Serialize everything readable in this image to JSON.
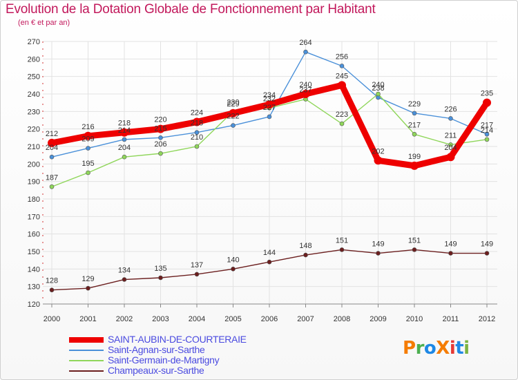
{
  "title": "Evolution de la Dotation Globale de Fonctionnement par Habitant",
  "subtitle": "(en € et par an)",
  "logo": {
    "text": "ProXiti",
    "letters": [
      "P",
      "r",
      "o",
      "X",
      "i",
      "t",
      "i"
    ],
    "colors": [
      "#f57c00",
      "#4caf50",
      "#1e88e5",
      "#f57c00",
      "#e53935",
      "#1e88e5",
      "#7cb342"
    ]
  },
  "chart_data": {
    "type": "line",
    "title": "Evolution de la Dotation Globale de Fonctionnement par Habitant",
    "subtitle": "(en € et par an)",
    "x": [
      "2000",
      "2001",
      "2002",
      "2003",
      "2004",
      "2005",
      "2006",
      "2007",
      "2008",
      "2009",
      "2010",
      "2011",
      "2012"
    ],
    "ylim": [
      120,
      270
    ],
    "yticks": [
      120,
      130,
      140,
      150,
      160,
      170,
      180,
      190,
      200,
      210,
      220,
      230,
      240,
      250,
      260,
      270
    ],
    "grid": true,
    "legend_position": "bottom-left",
    "series": [
      {
        "name": "SAINT-AUBIN-DE-COURTERAIE",
        "color": "#ee0000",
        "values": [
          212,
          216,
          218,
          220,
          224,
          229,
          234,
          240,
          245,
          202,
          199,
          204,
          235
        ]
      },
      {
        "name": "Saint-Agnan-sur-Sarthe",
        "color": "#4a90d9",
        "values": [
          204,
          209,
          214,
          215,
          218,
          222,
          227,
          264,
          256,
          238,
          229,
          226,
          217
        ]
      },
      {
        "name": "Saint-Germain-de-Martigny",
        "color": "#8fd65a",
        "values": [
          187,
          195,
          204,
          206,
          210,
          230,
          232,
          237,
          223,
          240,
          217,
          211,
          214
        ]
      },
      {
        "name": "Champeaux-sur-Sarthe",
        "color": "#6b1e1e",
        "values": [
          128,
          129,
          134,
          135,
          137,
          140,
          144,
          148,
          151,
          149,
          151,
          149,
          149
        ]
      }
    ]
  }
}
